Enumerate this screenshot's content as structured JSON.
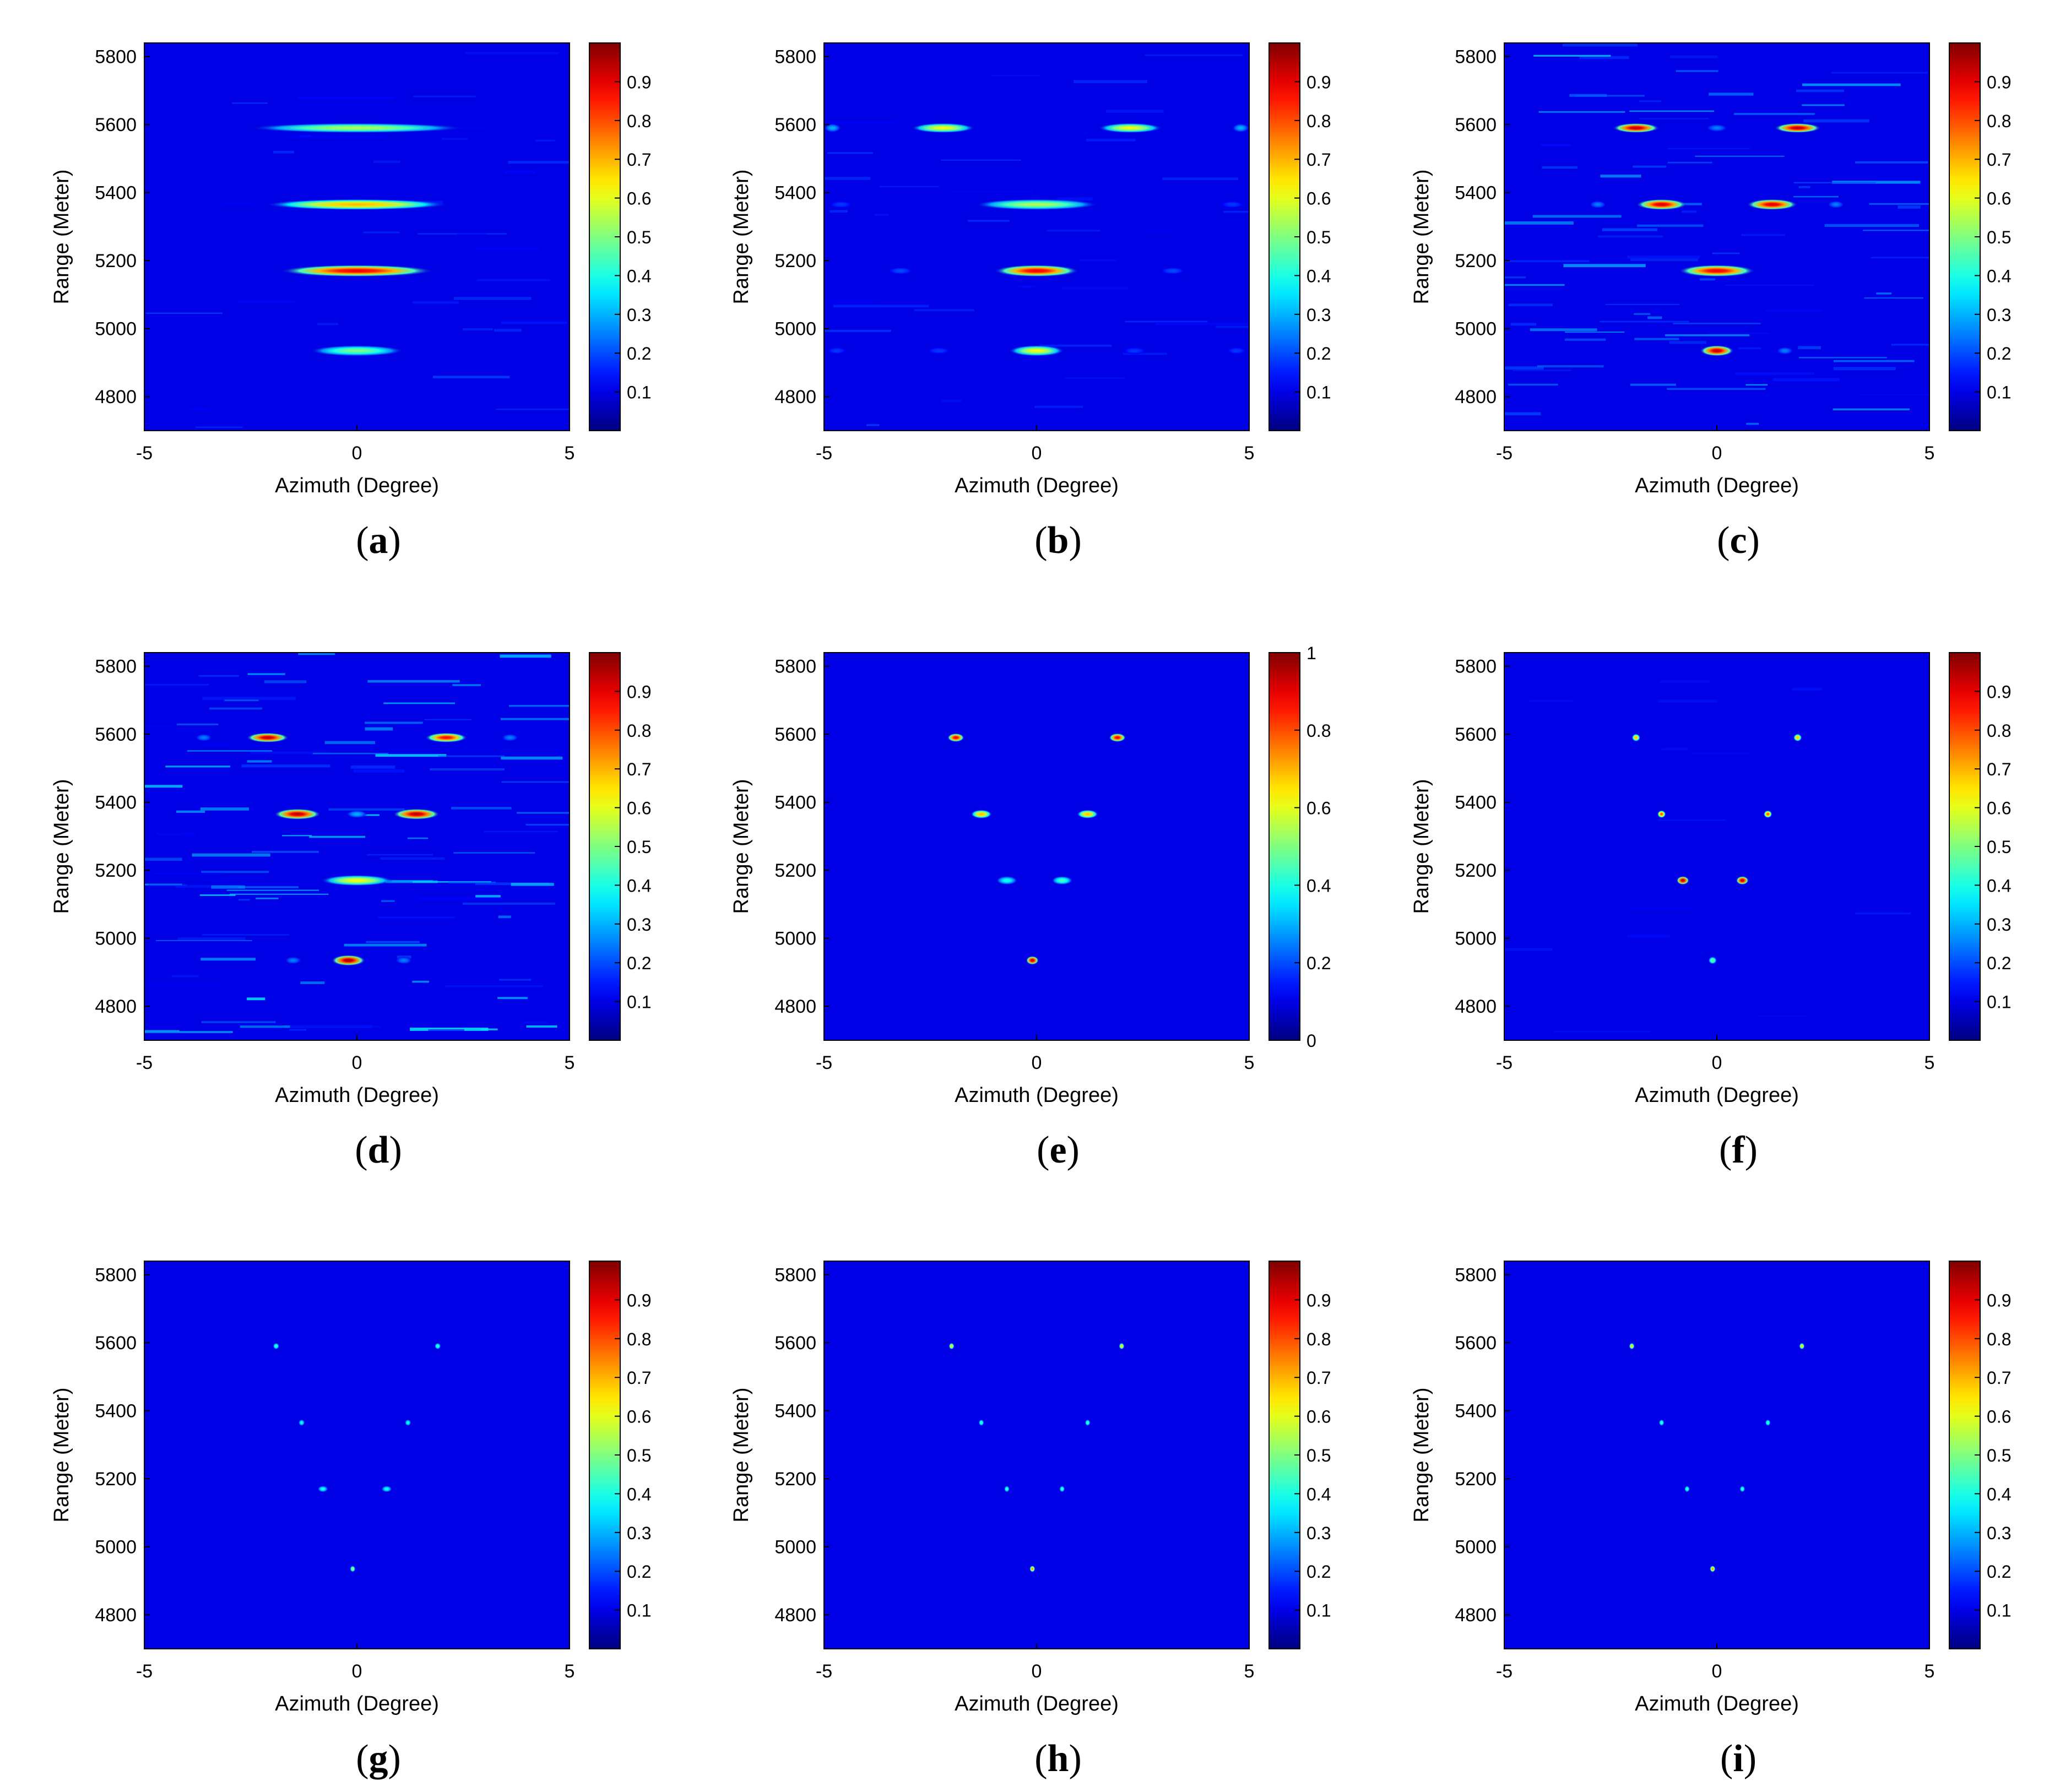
{
  "chart_data": [
    {
      "panel": "(a)",
      "type": "heatmap",
      "xlabel": "Azimuth (Degree)",
      "ylabel": "Range (Meter)",
      "xlim": [
        -5,
        5
      ],
      "ylim": [
        4700,
        5840
      ],
      "xticks": [
        -5,
        0,
        5
      ],
      "yticks": [
        4800,
        5000,
        5200,
        5400,
        5600,
        5800
      ],
      "colorbar": {
        "range": [
          0,
          1
        ],
        "ticks": [
          0.1,
          0.2,
          0.3,
          0.4,
          0.5,
          0.6,
          0.7,
          0.8,
          0.9
        ]
      },
      "noise": 0.05,
      "features": [
        {
          "azimuth": 0.0,
          "range": 5590,
          "value": 0.55,
          "width": 5.0,
          "height": 9,
          "kind": "bar"
        },
        {
          "azimuth": 0.0,
          "range": 5365,
          "value": 0.7,
          "width": 4.3,
          "height": 10,
          "kind": "bar"
        },
        {
          "azimuth": 0.0,
          "range": 5170,
          "value": 0.9,
          "width": 3.6,
          "height": 11,
          "kind": "bar"
        },
        {
          "azimuth": 0.0,
          "range": 4935,
          "value": 0.5,
          "width": 2.2,
          "height": 10,
          "kind": "bar"
        }
      ]
    },
    {
      "panel": "(b)",
      "type": "heatmap",
      "xlabel": "Azimuth (Degree)",
      "ylabel": "Range (Meter)",
      "xlim": [
        -5,
        5
      ],
      "ylim": [
        4700,
        5840
      ],
      "xticks": [
        -5,
        0,
        5
      ],
      "yticks": [
        4800,
        5000,
        5200,
        5400,
        5600,
        5800
      ],
      "colorbar": {
        "range": [
          0,
          1
        ],
        "ticks": [
          0.1,
          0.2,
          0.3,
          0.4,
          0.5,
          0.6,
          0.7,
          0.8,
          0.9
        ]
      },
      "noise": 0.05,
      "features": [
        {
          "azimuth": -2.2,
          "range": 5590,
          "value": 0.62,
          "width": 1.5,
          "height": 9,
          "kind": "blob"
        },
        {
          "azimuth": 2.2,
          "range": 5590,
          "value": 0.62,
          "width": 1.5,
          "height": 9,
          "kind": "blob"
        },
        {
          "azimuth": -4.8,
          "range": 5590,
          "value": 0.3,
          "width": 0.4,
          "height": 8,
          "kind": "blob"
        },
        {
          "azimuth": 4.8,
          "range": 5590,
          "value": 0.3,
          "width": 0.4,
          "height": 8,
          "kind": "blob"
        },
        {
          "azimuth": 0.0,
          "range": 5365,
          "value": 0.55,
          "width": 2.9,
          "height": 10,
          "kind": "bar"
        },
        {
          "azimuth": -4.6,
          "range": 5365,
          "value": 0.18,
          "width": 0.6,
          "height": 7,
          "kind": "blob"
        },
        {
          "azimuth": 4.6,
          "range": 5365,
          "value": 0.18,
          "width": 0.6,
          "height": 7,
          "kind": "blob"
        },
        {
          "azimuth": 0.0,
          "range": 5170,
          "value": 0.9,
          "width": 2.0,
          "height": 11,
          "kind": "bar"
        },
        {
          "azimuth": -3.2,
          "range": 5170,
          "value": 0.2,
          "width": 0.6,
          "height": 7,
          "kind": "blob"
        },
        {
          "azimuth": 3.2,
          "range": 5170,
          "value": 0.2,
          "width": 0.6,
          "height": 7,
          "kind": "blob"
        },
        {
          "azimuth": 0.0,
          "range": 4935,
          "value": 0.62,
          "width": 1.3,
          "height": 10,
          "kind": "blob"
        },
        {
          "azimuth": -2.3,
          "range": 4935,
          "value": 0.18,
          "width": 0.6,
          "height": 7,
          "kind": "blob"
        },
        {
          "azimuth": 2.3,
          "range": 4935,
          "value": 0.18,
          "width": 0.6,
          "height": 7,
          "kind": "blob"
        },
        {
          "azimuth": -4.7,
          "range": 4935,
          "value": 0.18,
          "width": 0.5,
          "height": 7,
          "kind": "blob"
        },
        {
          "azimuth": 4.7,
          "range": 4935,
          "value": 0.18,
          "width": 0.5,
          "height": 7,
          "kind": "blob"
        }
      ]
    },
    {
      "panel": "(c)",
      "type": "heatmap",
      "xlabel": "Azimuth (Degree)",
      "ylabel": "Range (Meter)",
      "xlim": [
        -5,
        5
      ],
      "ylim": [
        4700,
        5840
      ],
      "xticks": [
        -5,
        0,
        5
      ],
      "yticks": [
        4800,
        5000,
        5200,
        5400,
        5600,
        5800
      ],
      "colorbar": {
        "range": [
          0,
          1
        ],
        "ticks": [
          0.1,
          0.2,
          0.3,
          0.4,
          0.5,
          0.6,
          0.7,
          0.8,
          0.9
        ]
      },
      "noise": 0.13,
      "features": [
        {
          "azimuth": -1.9,
          "range": 5590,
          "value": 0.95,
          "width": 1.1,
          "height": 9,
          "kind": "blob"
        },
        {
          "azimuth": 1.9,
          "range": 5590,
          "value": 0.95,
          "width": 1.1,
          "height": 9,
          "kind": "blob"
        },
        {
          "azimuth": 0.0,
          "range": 5590,
          "value": 0.25,
          "width": 0.5,
          "height": 7,
          "kind": "blob"
        },
        {
          "azimuth": -1.3,
          "range": 5365,
          "value": 0.92,
          "width": 1.2,
          "height": 10,
          "kind": "blob"
        },
        {
          "azimuth": 1.3,
          "range": 5365,
          "value": 0.92,
          "width": 1.2,
          "height": 10,
          "kind": "blob"
        },
        {
          "azimuth": -2.8,
          "range": 5365,
          "value": 0.25,
          "width": 0.4,
          "height": 7,
          "kind": "blob"
        },
        {
          "azimuth": 2.8,
          "range": 5365,
          "value": 0.25,
          "width": 0.4,
          "height": 7,
          "kind": "blob"
        },
        {
          "azimuth": 0.0,
          "range": 5170,
          "value": 0.9,
          "width": 1.8,
          "height": 11,
          "kind": "bar"
        },
        {
          "azimuth": 0.0,
          "range": 4935,
          "value": 0.95,
          "width": 0.8,
          "height": 10,
          "kind": "blob"
        },
        {
          "azimuth": 1.6,
          "range": 4935,
          "value": 0.25,
          "width": 0.4,
          "height": 7,
          "kind": "blob"
        }
      ]
    },
    {
      "panel": "(d)",
      "type": "heatmap",
      "xlabel": "Azimuth (Degree)",
      "ylabel": "Range (Meter)",
      "xlim": [
        -5,
        5
      ],
      "ylim": [
        4700,
        5840
      ],
      "xticks": [
        -5,
        0,
        5
      ],
      "yticks": [
        4800,
        5000,
        5200,
        5400,
        5600,
        5800
      ],
      "colorbar": {
        "range": [
          0,
          1
        ],
        "ticks": [
          0.1,
          0.2,
          0.3,
          0.4,
          0.5,
          0.6,
          0.7,
          0.8,
          0.9
        ]
      },
      "noise": 0.15,
      "features": [
        {
          "azimuth": -2.1,
          "range": 5590,
          "value": 0.95,
          "width": 1.0,
          "height": 9,
          "kind": "blob"
        },
        {
          "azimuth": 2.1,
          "range": 5590,
          "value": 0.88,
          "width": 1.0,
          "height": 9,
          "kind": "blob"
        },
        {
          "azimuth": -3.6,
          "range": 5590,
          "value": 0.25,
          "width": 0.4,
          "height": 7,
          "kind": "blob"
        },
        {
          "azimuth": 3.6,
          "range": 5590,
          "value": 0.25,
          "width": 0.4,
          "height": 7,
          "kind": "blob"
        },
        {
          "azimuth": -1.4,
          "range": 5365,
          "value": 0.95,
          "width": 1.1,
          "height": 10,
          "kind": "blob"
        },
        {
          "azimuth": 1.4,
          "range": 5365,
          "value": 0.95,
          "width": 1.1,
          "height": 10,
          "kind": "blob"
        },
        {
          "azimuth": 0.0,
          "range": 5365,
          "value": 0.3,
          "width": 0.5,
          "height": 7,
          "kind": "blob"
        },
        {
          "azimuth": 0.0,
          "range": 5170,
          "value": 0.62,
          "width": 1.7,
          "height": 10,
          "kind": "bar"
        },
        {
          "azimuth": -0.2,
          "range": 4935,
          "value": 0.97,
          "width": 0.8,
          "height": 10,
          "kind": "blob"
        },
        {
          "azimuth": -1.5,
          "range": 4935,
          "value": 0.25,
          "width": 0.4,
          "height": 7,
          "kind": "blob"
        },
        {
          "azimuth": 1.1,
          "range": 4935,
          "value": 0.25,
          "width": 0.4,
          "height": 7,
          "kind": "blob"
        }
      ]
    },
    {
      "panel": "(e)",
      "type": "heatmap",
      "xlabel": "Azimuth (Degree)",
      "ylabel": "Range (Meter)",
      "xlim": [
        -5,
        5
      ],
      "ylim": [
        4700,
        5840
      ],
      "xticks": [
        -5,
        0,
        5
      ],
      "yticks": [
        4800,
        5000,
        5200,
        5400,
        5600,
        5800
      ],
      "colorbar": {
        "range": [
          0,
          1
        ],
        "ticks": [
          0,
          0.2,
          0.4,
          0.6,
          0.8,
          1
        ]
      },
      "noise": 0.0,
      "features": [
        {
          "azimuth": -1.9,
          "range": 5590,
          "value": 0.9,
          "width": 0.4,
          "height": 8,
          "kind": "blob"
        },
        {
          "azimuth": 1.9,
          "range": 5590,
          "value": 0.9,
          "width": 0.4,
          "height": 8,
          "kind": "blob"
        },
        {
          "azimuth": -1.3,
          "range": 5365,
          "value": 0.7,
          "width": 0.5,
          "height": 8,
          "kind": "blob"
        },
        {
          "azimuth": 1.2,
          "range": 5365,
          "value": 0.7,
          "width": 0.5,
          "height": 8,
          "kind": "blob"
        },
        {
          "azimuth": -0.7,
          "range": 5170,
          "value": 0.4,
          "width": 0.5,
          "height": 8,
          "kind": "blob"
        },
        {
          "azimuth": 0.6,
          "range": 5170,
          "value": 0.45,
          "width": 0.5,
          "height": 8,
          "kind": "blob"
        },
        {
          "azimuth": -0.1,
          "range": 4935,
          "value": 0.95,
          "width": 0.3,
          "height": 8,
          "kind": "blob"
        }
      ]
    },
    {
      "panel": "(f)",
      "type": "heatmap",
      "xlabel": "Azimuth (Degree)",
      "ylabel": "Range (Meter)",
      "xlim": [
        -5,
        5
      ],
      "ylim": [
        4700,
        5840
      ],
      "xticks": [
        -5,
        0,
        5
      ],
      "yticks": [
        4800,
        5000,
        5200,
        5400,
        5600,
        5800
      ],
      "colorbar": {
        "range": [
          0,
          1
        ],
        "ticks": [
          0.1,
          0.2,
          0.3,
          0.4,
          0.5,
          0.6,
          0.7,
          0.8,
          0.9
        ]
      },
      "noise": 0.02,
      "features": [
        {
          "azimuth": -1.9,
          "range": 5590,
          "value": 0.7,
          "width": 0.2,
          "height": 7,
          "kind": "point"
        },
        {
          "azimuth": 1.9,
          "range": 5590,
          "value": 0.7,
          "width": 0.2,
          "height": 7,
          "kind": "point"
        },
        {
          "azimuth": -1.3,
          "range": 5365,
          "value": 0.8,
          "width": 0.2,
          "height": 7,
          "kind": "point"
        },
        {
          "azimuth": 1.2,
          "range": 5365,
          "value": 0.8,
          "width": 0.2,
          "height": 7,
          "kind": "point"
        },
        {
          "azimuth": -0.8,
          "range": 5170,
          "value": 0.95,
          "width": 0.3,
          "height": 8,
          "kind": "point"
        },
        {
          "azimuth": 0.6,
          "range": 5170,
          "value": 0.95,
          "width": 0.3,
          "height": 8,
          "kind": "point"
        },
        {
          "azimuth": -0.1,
          "range": 4935,
          "value": 0.5,
          "width": 0.2,
          "height": 7,
          "kind": "point"
        }
      ]
    },
    {
      "panel": "(g)",
      "type": "heatmap",
      "xlabel": "Azimuth (Degree)",
      "ylabel": "Range (Meter)",
      "xlim": [
        -5,
        5
      ],
      "ylim": [
        4700,
        5840
      ],
      "xticks": [
        -5,
        0,
        5
      ],
      "yticks": [
        4800,
        5000,
        5200,
        5400,
        5600,
        5800
      ],
      "colorbar": {
        "range": [
          0,
          1
        ],
        "ticks": [
          0.1,
          0.2,
          0.3,
          0.4,
          0.5,
          0.6,
          0.7,
          0.8,
          0.9
        ]
      },
      "noise": 0.0,
      "features": [
        {
          "azimuth": -1.9,
          "range": 5590,
          "value": 0.45,
          "width": 0.15,
          "height": 6,
          "kind": "point"
        },
        {
          "azimuth": 1.9,
          "range": 5590,
          "value": 0.45,
          "width": 0.15,
          "height": 6,
          "kind": "point"
        },
        {
          "azimuth": -1.3,
          "range": 5365,
          "value": 0.4,
          "width": 0.15,
          "height": 6,
          "kind": "point"
        },
        {
          "azimuth": 1.2,
          "range": 5365,
          "value": 0.4,
          "width": 0.15,
          "height": 6,
          "kind": "point"
        },
        {
          "azimuth": -0.8,
          "range": 5170,
          "value": 0.4,
          "width": 0.25,
          "height": 6,
          "kind": "point"
        },
        {
          "azimuth": 0.7,
          "range": 5170,
          "value": 0.4,
          "width": 0.25,
          "height": 6,
          "kind": "point"
        },
        {
          "azimuth": -0.1,
          "range": 4935,
          "value": 0.55,
          "width": 0.1,
          "height": 6,
          "kind": "point"
        }
      ]
    },
    {
      "panel": "(h)",
      "type": "heatmap",
      "xlabel": "Azimuth (Degree)",
      "ylabel": "Range (Meter)",
      "xlim": [
        -5,
        5
      ],
      "ylim": [
        4700,
        5840
      ],
      "xticks": [
        -5,
        0,
        5
      ],
      "yticks": [
        4800,
        5000,
        5200,
        5400,
        5600,
        5800
      ],
      "colorbar": {
        "range": [
          0,
          1
        ],
        "ticks": [
          0.1,
          0.2,
          0.3,
          0.4,
          0.5,
          0.6,
          0.7,
          0.8,
          0.9
        ]
      },
      "noise": 0.0,
      "features": [
        {
          "azimuth": -2.0,
          "range": 5590,
          "value": 0.65,
          "width": 0.1,
          "height": 6,
          "kind": "point"
        },
        {
          "azimuth": 2.0,
          "range": 5590,
          "value": 0.65,
          "width": 0.1,
          "height": 6,
          "kind": "point"
        },
        {
          "azimuth": -1.3,
          "range": 5365,
          "value": 0.45,
          "width": 0.12,
          "height": 6,
          "kind": "point"
        },
        {
          "azimuth": 1.2,
          "range": 5365,
          "value": 0.45,
          "width": 0.12,
          "height": 6,
          "kind": "point"
        },
        {
          "azimuth": -0.7,
          "range": 5170,
          "value": 0.45,
          "width": 0.12,
          "height": 6,
          "kind": "point"
        },
        {
          "azimuth": 0.6,
          "range": 5170,
          "value": 0.45,
          "width": 0.12,
          "height": 6,
          "kind": "point"
        },
        {
          "azimuth": -0.1,
          "range": 4935,
          "value": 0.75,
          "width": 0.08,
          "height": 6,
          "kind": "point"
        }
      ]
    },
    {
      "panel": "(i)",
      "type": "heatmap",
      "xlabel": "Azimuth (Degree)",
      "ylabel": "Range (Meter)",
      "xlim": [
        -5,
        5
      ],
      "ylim": [
        4700,
        5840
      ],
      "xticks": [
        -5,
        0,
        5
      ],
      "yticks": [
        4800,
        5000,
        5200,
        5400,
        5600,
        5800
      ],
      "colorbar": {
        "range": [
          0,
          1
        ],
        "ticks": [
          0.1,
          0.2,
          0.3,
          0.4,
          0.5,
          0.6,
          0.7,
          0.8,
          0.9
        ]
      },
      "noise": 0.0,
      "features": [
        {
          "azimuth": -2.0,
          "range": 5590,
          "value": 0.65,
          "width": 0.1,
          "height": 6,
          "kind": "point"
        },
        {
          "azimuth": 2.0,
          "range": 5590,
          "value": 0.65,
          "width": 0.1,
          "height": 6,
          "kind": "point"
        },
        {
          "azimuth": -1.3,
          "range": 5365,
          "value": 0.45,
          "width": 0.12,
          "height": 6,
          "kind": "point"
        },
        {
          "azimuth": 1.2,
          "range": 5365,
          "value": 0.45,
          "width": 0.12,
          "height": 6,
          "kind": "point"
        },
        {
          "azimuth": -0.7,
          "range": 5170,
          "value": 0.45,
          "width": 0.12,
          "height": 6,
          "kind": "point"
        },
        {
          "azimuth": 0.6,
          "range": 5170,
          "value": 0.45,
          "width": 0.12,
          "height": 6,
          "kind": "point"
        },
        {
          "azimuth": -0.1,
          "range": 4935,
          "value": 0.75,
          "width": 0.08,
          "height": 6,
          "kind": "point"
        }
      ]
    }
  ]
}
